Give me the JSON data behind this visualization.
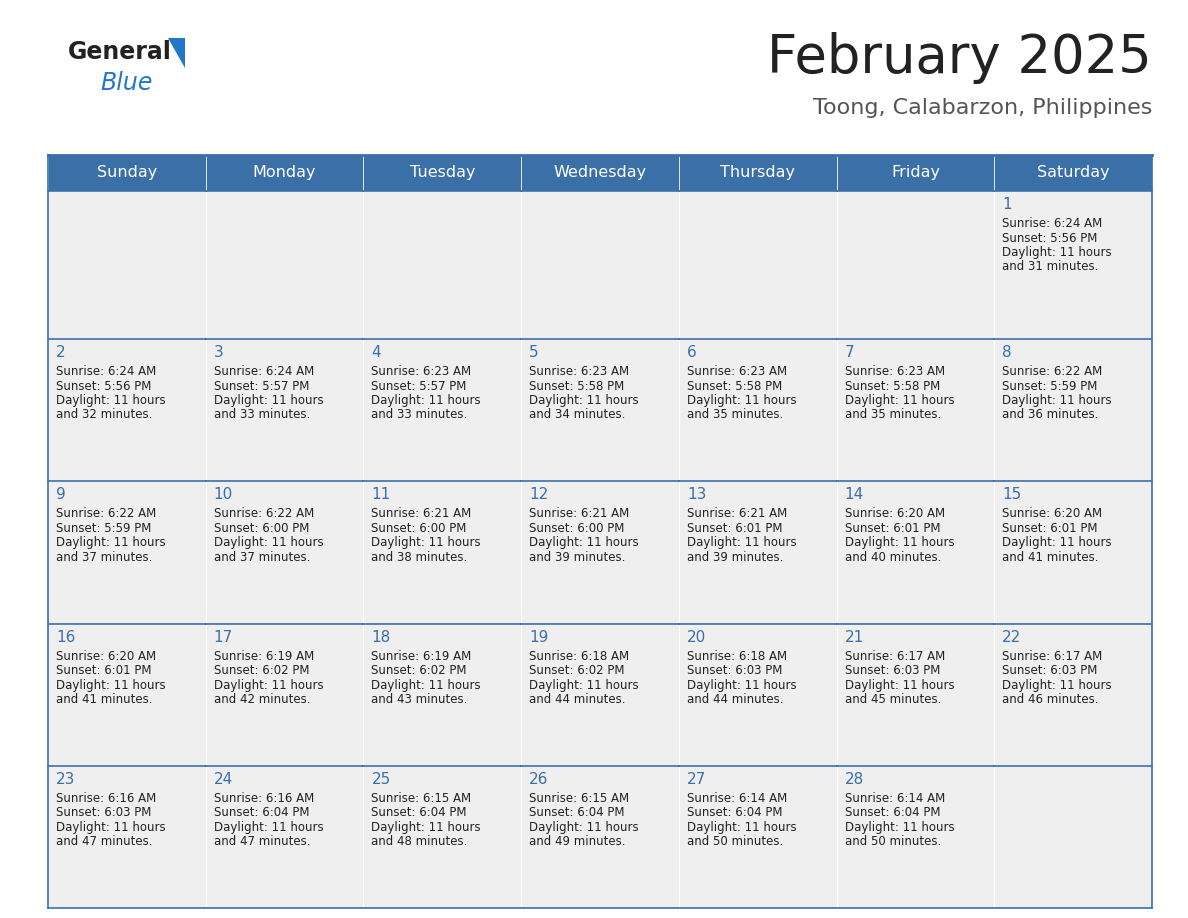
{
  "title": "February 2025",
  "subtitle": "Toong, Calabarzon, Philippines",
  "days_of_week": [
    "Sunday",
    "Monday",
    "Tuesday",
    "Wednesday",
    "Thursday",
    "Friday",
    "Saturday"
  ],
  "header_bg": "#3a6fa8",
  "header_text": "#ffffff",
  "cell_bg": "#efefef",
  "border_color": "#3a6fa8",
  "title_color": "#222222",
  "subtitle_color": "#555555",
  "day_number_color": "#3a6fa8",
  "text_color": "#222222",
  "logo_general_color": "#222222",
  "logo_blue_color": "#2277cc",
  "calendar_data": [
    [
      null,
      null,
      null,
      null,
      null,
      null,
      {
        "day": 1,
        "sunrise": "6:24 AM",
        "sunset": "5:56 PM",
        "daylight_min": "31 minutes."
      }
    ],
    [
      {
        "day": 2,
        "sunrise": "6:24 AM",
        "sunset": "5:56 PM",
        "daylight_min": "32 minutes."
      },
      {
        "day": 3,
        "sunrise": "6:24 AM",
        "sunset": "5:57 PM",
        "daylight_min": "33 minutes."
      },
      {
        "day": 4,
        "sunrise": "6:23 AM",
        "sunset": "5:57 PM",
        "daylight_min": "33 minutes."
      },
      {
        "day": 5,
        "sunrise": "6:23 AM",
        "sunset": "5:58 PM",
        "daylight_min": "34 minutes."
      },
      {
        "day": 6,
        "sunrise": "6:23 AM",
        "sunset": "5:58 PM",
        "daylight_min": "35 minutes."
      },
      {
        "day": 7,
        "sunrise": "6:23 AM",
        "sunset": "5:58 PM",
        "daylight_min": "35 minutes."
      },
      {
        "day": 8,
        "sunrise": "6:22 AM",
        "sunset": "5:59 PM",
        "daylight_min": "36 minutes."
      }
    ],
    [
      {
        "day": 9,
        "sunrise": "6:22 AM",
        "sunset": "5:59 PM",
        "daylight_min": "37 minutes."
      },
      {
        "day": 10,
        "sunrise": "6:22 AM",
        "sunset": "6:00 PM",
        "daylight_min": "37 minutes."
      },
      {
        "day": 11,
        "sunrise": "6:21 AM",
        "sunset": "6:00 PM",
        "daylight_min": "38 minutes."
      },
      {
        "day": 12,
        "sunrise": "6:21 AM",
        "sunset": "6:00 PM",
        "daylight_min": "39 minutes."
      },
      {
        "day": 13,
        "sunrise": "6:21 AM",
        "sunset": "6:01 PM",
        "daylight_min": "39 minutes."
      },
      {
        "day": 14,
        "sunrise": "6:20 AM",
        "sunset": "6:01 PM",
        "daylight_min": "40 minutes."
      },
      {
        "day": 15,
        "sunrise": "6:20 AM",
        "sunset": "6:01 PM",
        "daylight_min": "41 minutes."
      }
    ],
    [
      {
        "day": 16,
        "sunrise": "6:20 AM",
        "sunset": "6:01 PM",
        "daylight_min": "41 minutes."
      },
      {
        "day": 17,
        "sunrise": "6:19 AM",
        "sunset": "6:02 PM",
        "daylight_min": "42 minutes."
      },
      {
        "day": 18,
        "sunrise": "6:19 AM",
        "sunset": "6:02 PM",
        "daylight_min": "43 minutes."
      },
      {
        "day": 19,
        "sunrise": "6:18 AM",
        "sunset": "6:02 PM",
        "daylight_min": "44 minutes."
      },
      {
        "day": 20,
        "sunrise": "6:18 AM",
        "sunset": "6:03 PM",
        "daylight_min": "44 minutes."
      },
      {
        "day": 21,
        "sunrise": "6:17 AM",
        "sunset": "6:03 PM",
        "daylight_min": "45 minutes."
      },
      {
        "day": 22,
        "sunrise": "6:17 AM",
        "sunset": "6:03 PM",
        "daylight_min": "46 minutes."
      }
    ],
    [
      {
        "day": 23,
        "sunrise": "6:16 AM",
        "sunset": "6:03 PM",
        "daylight_min": "47 minutes."
      },
      {
        "day": 24,
        "sunrise": "6:16 AM",
        "sunset": "6:04 PM",
        "daylight_min": "47 minutes."
      },
      {
        "day": 25,
        "sunrise": "6:15 AM",
        "sunset": "6:04 PM",
        "daylight_min": "48 minutes."
      },
      {
        "day": 26,
        "sunrise": "6:15 AM",
        "sunset": "6:04 PM",
        "daylight_min": "49 minutes."
      },
      {
        "day": 27,
        "sunrise": "6:14 AM",
        "sunset": "6:04 PM",
        "daylight_min": "50 minutes."
      },
      {
        "day": 28,
        "sunrise": "6:14 AM",
        "sunset": "6:04 PM",
        "daylight_min": "50 minutes."
      },
      null
    ]
  ]
}
